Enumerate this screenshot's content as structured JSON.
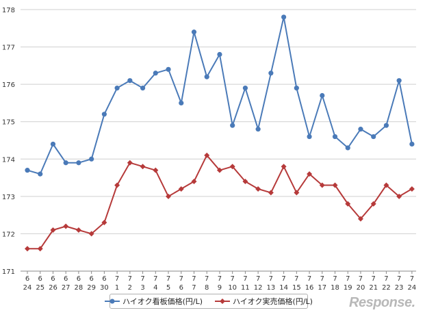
{
  "chart_data": {
    "type": "line",
    "title": "",
    "xlabel": "",
    "ylabel": "",
    "ylim": [
      171,
      178
    ],
    "yticks": [
      "171",
      "172",
      "173",
      "174",
      "175",
      "176",
      "177",
      "178"
    ],
    "grid": true,
    "legend_position": "bottom",
    "categories": [
      {
        "month": "6",
        "day": "24"
      },
      {
        "month": "6",
        "day": "25"
      },
      {
        "month": "6",
        "day": "26"
      },
      {
        "month": "6",
        "day": "27"
      },
      {
        "month": "6",
        "day": "28"
      },
      {
        "month": "6",
        "day": "29"
      },
      {
        "month": "6",
        "day": "30"
      },
      {
        "month": "7",
        "day": "1"
      },
      {
        "month": "7",
        "day": "2"
      },
      {
        "month": "7",
        "day": "3"
      },
      {
        "month": "7",
        "day": "4"
      },
      {
        "month": "7",
        "day": "5"
      },
      {
        "month": "7",
        "day": "6"
      },
      {
        "month": "7",
        "day": "7"
      },
      {
        "month": "7",
        "day": "8"
      },
      {
        "month": "7",
        "day": "9"
      },
      {
        "month": "7",
        "day": "10"
      },
      {
        "month": "7",
        "day": "11"
      },
      {
        "month": "7",
        "day": "12"
      },
      {
        "month": "7",
        "day": "13"
      },
      {
        "month": "7",
        "day": "14"
      },
      {
        "month": "7",
        "day": "15"
      },
      {
        "month": "7",
        "day": "16"
      },
      {
        "month": "7",
        "day": "17"
      },
      {
        "month": "7",
        "day": "18"
      },
      {
        "month": "7",
        "day": "19"
      },
      {
        "month": "7",
        "day": "20"
      },
      {
        "month": "7",
        "day": "21"
      },
      {
        "month": "7",
        "day": "22"
      },
      {
        "month": "7",
        "day": "23"
      },
      {
        "month": "7",
        "day": "24"
      }
    ],
    "series": [
      {
        "name": "ハイオク看板価格(円/L)",
        "color": "#4a7ab8",
        "marker": "circle",
        "values": [
          173.7,
          173.6,
          174.4,
          173.9,
          173.9,
          174.0,
          175.2,
          175.9,
          176.1,
          175.9,
          176.3,
          176.4,
          175.5,
          177.4,
          176.2,
          176.8,
          174.9,
          175.9,
          174.8,
          176.3,
          177.8,
          175.9,
          174.6,
          175.7,
          174.6,
          174.3,
          174.8,
          174.6,
          174.9,
          176.1,
          174.4
        ]
      },
      {
        "name": "ハイオク実売価格(円/L)",
        "color": "#b63a3a",
        "marker": "diamond",
        "values": [
          171.6,
          171.6,
          172.1,
          172.2,
          172.1,
          172.0,
          172.3,
          173.3,
          173.9,
          173.8,
          173.7,
          173.0,
          173.2,
          173.4,
          174.1,
          173.7,
          173.8,
          173.4,
          173.2,
          173.1,
          173.8,
          173.1,
          173.6,
          173.3,
          173.3,
          172.8,
          172.4,
          172.8,
          173.3,
          173.0,
          173.2
        ]
      }
    ]
  },
  "watermark": "Response."
}
